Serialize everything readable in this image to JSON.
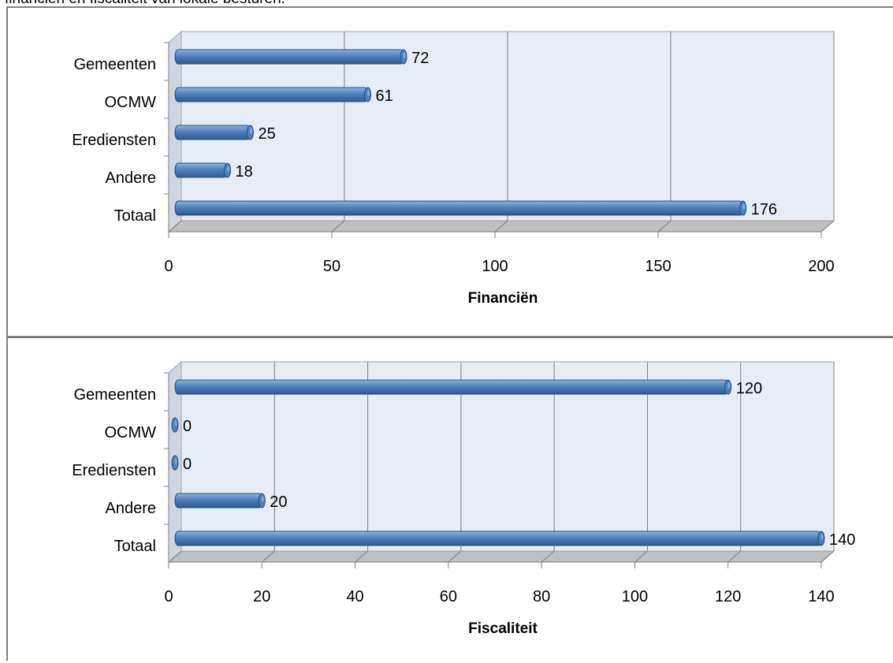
{
  "caption": "financiën en fiscaliteit van lokale besturen.",
  "colors": {
    "bar": "#4f81bd",
    "bar_dark": "#2c5a95",
    "bar_light": "#95b3d7",
    "wall": "#e8edf5",
    "floor": "#bfbfbf",
    "grid": "#808080"
  },
  "chart_data": [
    {
      "type": "bar",
      "orientation": "horizontal",
      "categories": [
        "Gemeenten",
        "OCMW",
        "Erediensten",
        "Andere",
        "Totaal"
      ],
      "values": [
        72,
        61,
        25,
        18,
        176
      ],
      "value_labels": [
        "72",
        "61",
        "25",
        "18",
        "176"
      ],
      "xlabel": "Financiën",
      "xlim": [
        0,
        200
      ],
      "xticks": [
        "0",
        "50",
        "100",
        "150",
        "200"
      ],
      "grid": true
    },
    {
      "type": "bar",
      "orientation": "horizontal",
      "categories": [
        "Gemeenten",
        "OCMW",
        "Erediensten",
        "Andere",
        "Totaal"
      ],
      "values": [
        120,
        0,
        0,
        20,
        140
      ],
      "value_labels": [
        "120",
        "0",
        "0",
        "20",
        "140"
      ],
      "xlabel": "Fiscaliteit",
      "xlim": [
        0,
        140
      ],
      "xticks": [
        "0",
        "20",
        "40",
        "60",
        "80",
        "100",
        "120",
        "140"
      ],
      "grid": true
    }
  ]
}
